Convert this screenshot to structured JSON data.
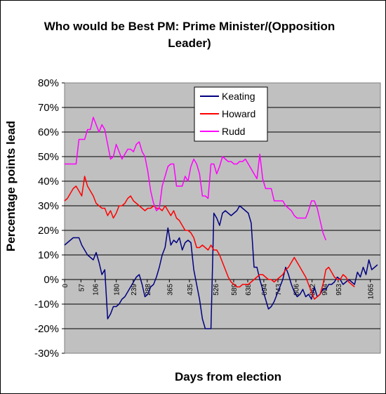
{
  "chart_data": {
    "type": "line",
    "title": "Who would be Best PM: Prime Minister/(Opposition Leader)",
    "xlabel": "Days from election",
    "ylabel": "Percentage points lead",
    "xlim": [
      0,
      1100
    ],
    "ylim": [
      -30,
      80
    ],
    "ytick_labels": [
      "-30%",
      "-20%",
      "-10%",
      "0%",
      "10%",
      "20%",
      "30%",
      "40%",
      "50%",
      "60%",
      "70%",
      "80%"
    ],
    "ytick_values": [
      -30,
      -20,
      -10,
      0,
      10,
      20,
      30,
      40,
      50,
      60,
      70,
      80
    ],
    "xtick_labels": [
      "0",
      "57",
      "106",
      "180",
      "239",
      "288",
      "365",
      "435",
      "526",
      "589",
      "638",
      "694",
      "743",
      "806",
      "862",
      "904",
      "953",
      "1065"
    ],
    "xtick_values": [
      0,
      57,
      106,
      180,
      239,
      288,
      365,
      435,
      526,
      589,
      638,
      694,
      743,
      806,
      862,
      904,
      953,
      1065
    ],
    "grid": true,
    "legend_position": "top-right",
    "series": [
      {
        "name": "Keating",
        "color": "#000080",
        "x": [
          0,
          10,
          20,
          30,
          40,
          50,
          60,
          70,
          80,
          90,
          100,
          110,
          120,
          130,
          140,
          150,
          160,
          170,
          180,
          190,
          200,
          210,
          220,
          230,
          240,
          250,
          260,
          270,
          280,
          290,
          300,
          310,
          320,
          330,
          340,
          350,
          360,
          370,
          380,
          390,
          400,
          410,
          420,
          430,
          440,
          450,
          460,
          470,
          480,
          490,
          500,
          510,
          520,
          530,
          540,
          550,
          560,
          570,
          580,
          590,
          600,
          610,
          620,
          630,
          640,
          650,
          660,
          670,
          680,
          690,
          700,
          710,
          720,
          730,
          740,
          750,
          760,
          770,
          780,
          790,
          800,
          810,
          820,
          830,
          840,
          850,
          860,
          870,
          880,
          890,
          900,
          910,
          920,
          930,
          940,
          950,
          960,
          970,
          980,
          990,
          1000,
          1010,
          1020,
          1030,
          1040,
          1050,
          1060,
          1070,
          1080,
          1090
        ],
        "y": [
          14,
          15,
          16,
          17,
          17,
          17,
          14,
          12,
          10,
          9,
          8,
          11,
          7,
          2,
          4,
          -16,
          -14,
          -11,
          -11,
          -10,
          -8,
          -7,
          -5,
          -3,
          -1,
          1,
          2,
          -2,
          -7,
          -6,
          -3,
          -2,
          1,
          5,
          10,
          13,
          21,
          14,
          16,
          15,
          17,
          12,
          15,
          16,
          15,
          4,
          -2,
          -8,
          -16,
          -20,
          -20,
          -20,
          27,
          25,
          22,
          27,
          28,
          27,
          26,
          27,
          28,
          30,
          29,
          28,
          27,
          23,
          5,
          5,
          0,
          -4,
          -8,
          -12,
          -11,
          -9,
          -6,
          -3,
          0,
          5,
          2,
          -2,
          -5,
          -7,
          -6,
          -4,
          -7,
          -6,
          -8,
          -3,
          -7,
          -6,
          -4,
          -4,
          -2,
          -2,
          -1,
          1,
          0,
          -2,
          -1,
          0,
          -1,
          -2,
          3,
          1,
          5,
          2,
          8,
          4,
          5,
          6
        ]
      },
      {
        "name": "Howard",
        "color": "#ff0000",
        "x": [
          0,
          10,
          20,
          30,
          40,
          50,
          60,
          70,
          80,
          90,
          100,
          110,
          120,
          130,
          140,
          150,
          160,
          170,
          180,
          190,
          200,
          210,
          220,
          230,
          240,
          250,
          260,
          270,
          280,
          290,
          300,
          310,
          320,
          330,
          340,
          350,
          360,
          370,
          380,
          390,
          400,
          410,
          420,
          430,
          440,
          450,
          460,
          470,
          480,
          490,
          500,
          510,
          520,
          530,
          540,
          550,
          560,
          570,
          580,
          590,
          600,
          610,
          620,
          630,
          640,
          650,
          660,
          670,
          680,
          690,
          700,
          710,
          720,
          730,
          740,
          750,
          760,
          770,
          780,
          790,
          800,
          810,
          820,
          830,
          840,
          850,
          860,
          870,
          880,
          890,
          900,
          910,
          920,
          930,
          940,
          950,
          960,
          970,
          980,
          990,
          1000,
          1010
        ],
        "y": [
          32,
          33,
          35,
          37,
          38,
          36,
          34,
          42,
          38,
          36,
          34,
          31,
          30,
          29,
          29,
          26,
          28,
          25,
          27,
          30,
          30,
          31,
          33,
          34,
          32,
          31,
          30,
          29,
          28,
          29,
          29,
          30,
          29,
          29,
          28,
          30,
          28,
          26,
          28,
          25,
          24,
          22,
          20,
          20,
          19,
          17,
          13,
          13,
          14,
          13,
          12,
          14,
          12,
          12,
          10,
          7,
          4,
          1,
          -1,
          -2,
          -3,
          -3,
          -2,
          -2,
          -2,
          -1,
          0,
          1,
          2,
          2,
          1,
          0,
          0,
          -1,
          0,
          1,
          2,
          4,
          5,
          7,
          9,
          7,
          5,
          3,
          1,
          -2,
          -5,
          -8,
          -7,
          -6,
          -2,
          4,
          5,
          3,
          1,
          0,
          0,
          2,
          1,
          -1,
          -2,
          -3
        ]
      },
      {
        "name": "Rudd",
        "color": "#ff00ff",
        "x": [
          0,
          10,
          20,
          30,
          40,
          50,
          60,
          70,
          80,
          90,
          100,
          110,
          120,
          130,
          140,
          150,
          160,
          170,
          180,
          190,
          200,
          210,
          220,
          230,
          240,
          250,
          260,
          270,
          280,
          290,
          300,
          310,
          320,
          330,
          340,
          350,
          360,
          370,
          380,
          390,
          400,
          410,
          420,
          430,
          440,
          450,
          460,
          470,
          480,
          490,
          500,
          510,
          520,
          530,
          540,
          550,
          560,
          570,
          580,
          590,
          600,
          610,
          620,
          630,
          640,
          650,
          660,
          670,
          680,
          690,
          700,
          710,
          720,
          730,
          740,
          750,
          760,
          770,
          780,
          790,
          800,
          810,
          820,
          830,
          840,
          850,
          860,
          870,
          880,
          890,
          900,
          910
        ],
        "y": [
          47,
          47,
          47,
          47,
          47,
          57,
          57,
          57,
          61,
          61,
          66,
          63,
          60,
          63,
          61,
          55,
          49,
          50,
          55,
          52,
          49,
          51,
          53,
          53,
          52,
          55,
          56,
          52,
          50,
          44,
          36,
          31,
          28,
          29,
          38,
          42,
          46,
          47,
          47,
          38,
          38,
          38,
          42,
          40,
          46,
          49,
          47,
          43,
          34,
          34,
          33,
          47,
          47,
          43,
          46,
          50,
          49,
          48,
          48,
          47,
          47,
          48,
          48,
          49,
          47,
          45,
          43,
          41,
          51,
          41,
          37,
          37,
          37,
          32,
          32,
          32,
          32,
          30,
          29,
          28,
          26,
          25,
          25,
          25,
          25,
          28,
          32,
          32,
          29,
          24,
          19,
          16
        ]
      }
    ]
  }
}
